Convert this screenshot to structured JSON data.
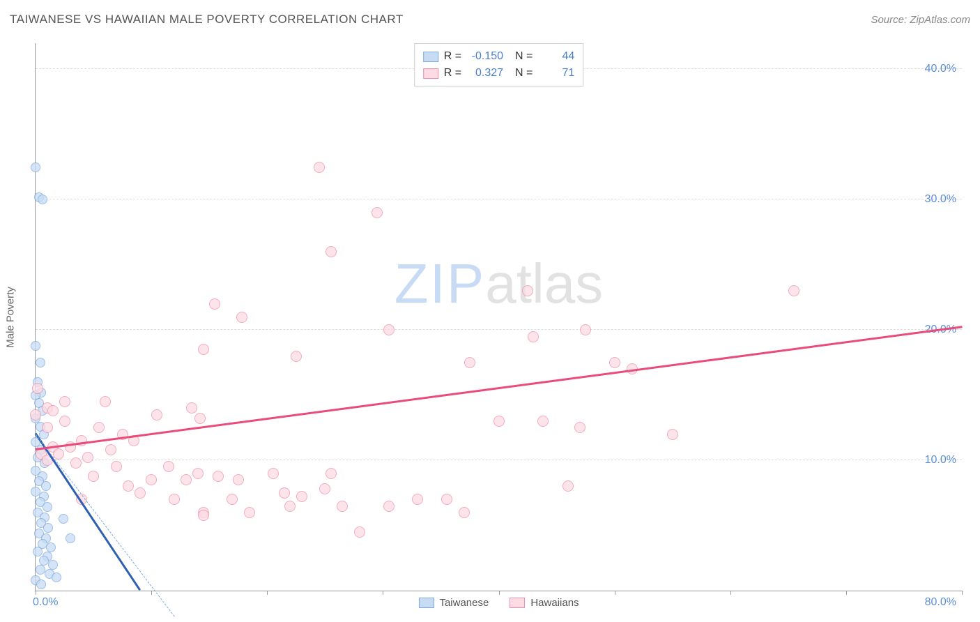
{
  "header": {
    "title": "TAIWANESE VS HAWAIIAN MALE POVERTY CORRELATION CHART",
    "source": "Source: ZipAtlas.com"
  },
  "chart": {
    "type": "scatter",
    "ylabel": "Male Poverty",
    "xlim": [
      0,
      80
    ],
    "ylim": [
      0,
      42
    ],
    "yticks": [
      {
        "v": 10,
        "label": "10.0%"
      },
      {
        "v": 20,
        "label": "20.0%"
      },
      {
        "v": 30,
        "label": "30.0%"
      },
      {
        "v": 40,
        "label": "40.0%"
      }
    ],
    "xticks_major": [
      0,
      10,
      20,
      30,
      40,
      50,
      60,
      70,
      80
    ],
    "x_origin_label": "0.0%",
    "x_end_label": "80.0%",
    "background_color": "#ffffff",
    "grid_color": "#dddddd",
    "axis_color": "#999999",
    "tick_label_color": "#5b8fd6",
    "watermark": {
      "part1": "ZIP",
      "part2": "atlas",
      "color1": "#c7dbf4",
      "color2": "#e2e2e2"
    },
    "series": [
      {
        "name": "Taiwanese",
        "R": "-0.150",
        "N": "44",
        "marker_fill": "#c7dcf3",
        "marker_stroke": "#7daae0",
        "marker_size": 14,
        "regression": {
          "x1": 0,
          "y1": 12.0,
          "x2": 9.0,
          "y2": 0,
          "color": "#2e5fb0",
          "width": 3
        },
        "regression_ext": {
          "x1": 0,
          "y1": 12.0,
          "x2": 9.0,
          "y2": 0,
          "color": "#7daae0",
          "dashed": true
        },
        "points": [
          [
            0.0,
            32.5
          ],
          [
            0.3,
            30.2
          ],
          [
            0.6,
            30.0
          ],
          [
            0.0,
            18.8
          ],
          [
            0.4,
            17.5
          ],
          [
            0.2,
            16.0
          ],
          [
            0.5,
            15.2
          ],
          [
            0.0,
            15.0
          ],
          [
            0.3,
            14.4
          ],
          [
            0.6,
            13.8
          ],
          [
            0.0,
            13.2
          ],
          [
            0.4,
            12.6
          ],
          [
            0.7,
            12.0
          ],
          [
            0.0,
            11.4
          ],
          [
            0.5,
            10.8
          ],
          [
            0.2,
            10.2
          ],
          [
            0.8,
            9.8
          ],
          [
            0.0,
            9.2
          ],
          [
            0.6,
            8.8
          ],
          [
            0.3,
            8.4
          ],
          [
            0.9,
            8.0
          ],
          [
            0.0,
            7.6
          ],
          [
            0.7,
            7.2
          ],
          [
            0.4,
            6.8
          ],
          [
            1.0,
            6.4
          ],
          [
            0.2,
            6.0
          ],
          [
            0.8,
            5.6
          ],
          [
            0.5,
            5.2
          ],
          [
            1.1,
            4.8
          ],
          [
            0.3,
            4.4
          ],
          [
            0.9,
            4.0
          ],
          [
            0.6,
            3.6
          ],
          [
            1.3,
            3.3
          ],
          [
            0.2,
            3.0
          ],
          [
            1.0,
            2.6
          ],
          [
            0.7,
            2.3
          ],
          [
            1.5,
            2.0
          ],
          [
            0.4,
            1.6
          ],
          [
            1.2,
            1.3
          ],
          [
            2.4,
            5.5
          ],
          [
            3.0,
            4.0
          ],
          [
            0.0,
            0.8
          ],
          [
            1.8,
            1.0
          ],
          [
            0.5,
            0.5
          ]
        ]
      },
      {
        "name": "Hawaiians",
        "R": "0.327",
        "N": "71",
        "marker_fill": "#fcdbe3",
        "marker_stroke": "#ef8fa9",
        "marker_size": 16,
        "regression": {
          "x1": 0,
          "y1": 10.8,
          "x2": 80,
          "y2": 20.2,
          "color": "#e94b7a",
          "width": 2.5
        },
        "points": [
          [
            24.5,
            32.5
          ],
          [
            29.5,
            29.0
          ],
          [
            25.5,
            26.0
          ],
          [
            42.5,
            23.0
          ],
          [
            65.5,
            23.0
          ],
          [
            15.5,
            22.0
          ],
          [
            17.8,
            21.0
          ],
          [
            30.5,
            20.0
          ],
          [
            47.5,
            20.0
          ],
          [
            43.0,
            19.5
          ],
          [
            14.5,
            18.5
          ],
          [
            22.5,
            18.0
          ],
          [
            6.0,
            14.5
          ],
          [
            50.0,
            17.5
          ],
          [
            51.5,
            17.0
          ],
          [
            0.2,
            15.5
          ],
          [
            13.5,
            14.0
          ],
          [
            37.5,
            17.5
          ],
          [
            14.2,
            13.2
          ],
          [
            1.0,
            14.0
          ],
          [
            43.8,
            13.0
          ],
          [
            10.5,
            13.5
          ],
          [
            40.0,
            13.0
          ],
          [
            55.0,
            12.0
          ],
          [
            2.5,
            13.0
          ],
          [
            47.0,
            12.5
          ],
          [
            5.5,
            12.5
          ],
          [
            7.5,
            12.0
          ],
          [
            4.0,
            11.5
          ],
          [
            3.0,
            11.0
          ],
          [
            8.5,
            11.5
          ],
          [
            1.5,
            11.0
          ],
          [
            6.5,
            10.8
          ],
          [
            0.5,
            10.5
          ],
          [
            2.0,
            10.5
          ],
          [
            4.5,
            10.2
          ],
          [
            1.0,
            10.0
          ],
          [
            3.5,
            9.8
          ],
          [
            11.5,
            9.5
          ],
          [
            7.0,
            9.5
          ],
          [
            20.5,
            9.0
          ],
          [
            14.0,
            9.0
          ],
          [
            15.8,
            8.8
          ],
          [
            13.0,
            8.5
          ],
          [
            17.5,
            8.5
          ],
          [
            5.0,
            8.8
          ],
          [
            25.5,
            9.0
          ],
          [
            8.0,
            8.0
          ],
          [
            46.0,
            8.0
          ],
          [
            21.5,
            7.5
          ],
          [
            25.0,
            7.8
          ],
          [
            23.0,
            7.2
          ],
          [
            17.0,
            7.0
          ],
          [
            33.0,
            7.0
          ],
          [
            22.0,
            6.5
          ],
          [
            35.5,
            7.0
          ],
          [
            26.5,
            6.5
          ],
          [
            30.5,
            6.5
          ],
          [
            14.5,
            6.0
          ],
          [
            37.0,
            6.0
          ],
          [
            14.5,
            5.8
          ],
          [
            28.0,
            4.5
          ],
          [
            4.0,
            7.0
          ],
          [
            10.0,
            8.5
          ],
          [
            9.0,
            7.5
          ],
          [
            12.0,
            7.0
          ],
          [
            18.5,
            6.0
          ],
          [
            0.0,
            13.5
          ],
          [
            1.5,
            13.8
          ],
          [
            1.0,
            12.5
          ],
          [
            2.5,
            14.5
          ]
        ]
      }
    ],
    "bottom_legend": [
      {
        "label": "Taiwanese",
        "fill": "#c7dcf3",
        "stroke": "#7daae0"
      },
      {
        "label": "Hawaiians",
        "fill": "#fcdbe3",
        "stroke": "#ef8fa9"
      }
    ]
  }
}
